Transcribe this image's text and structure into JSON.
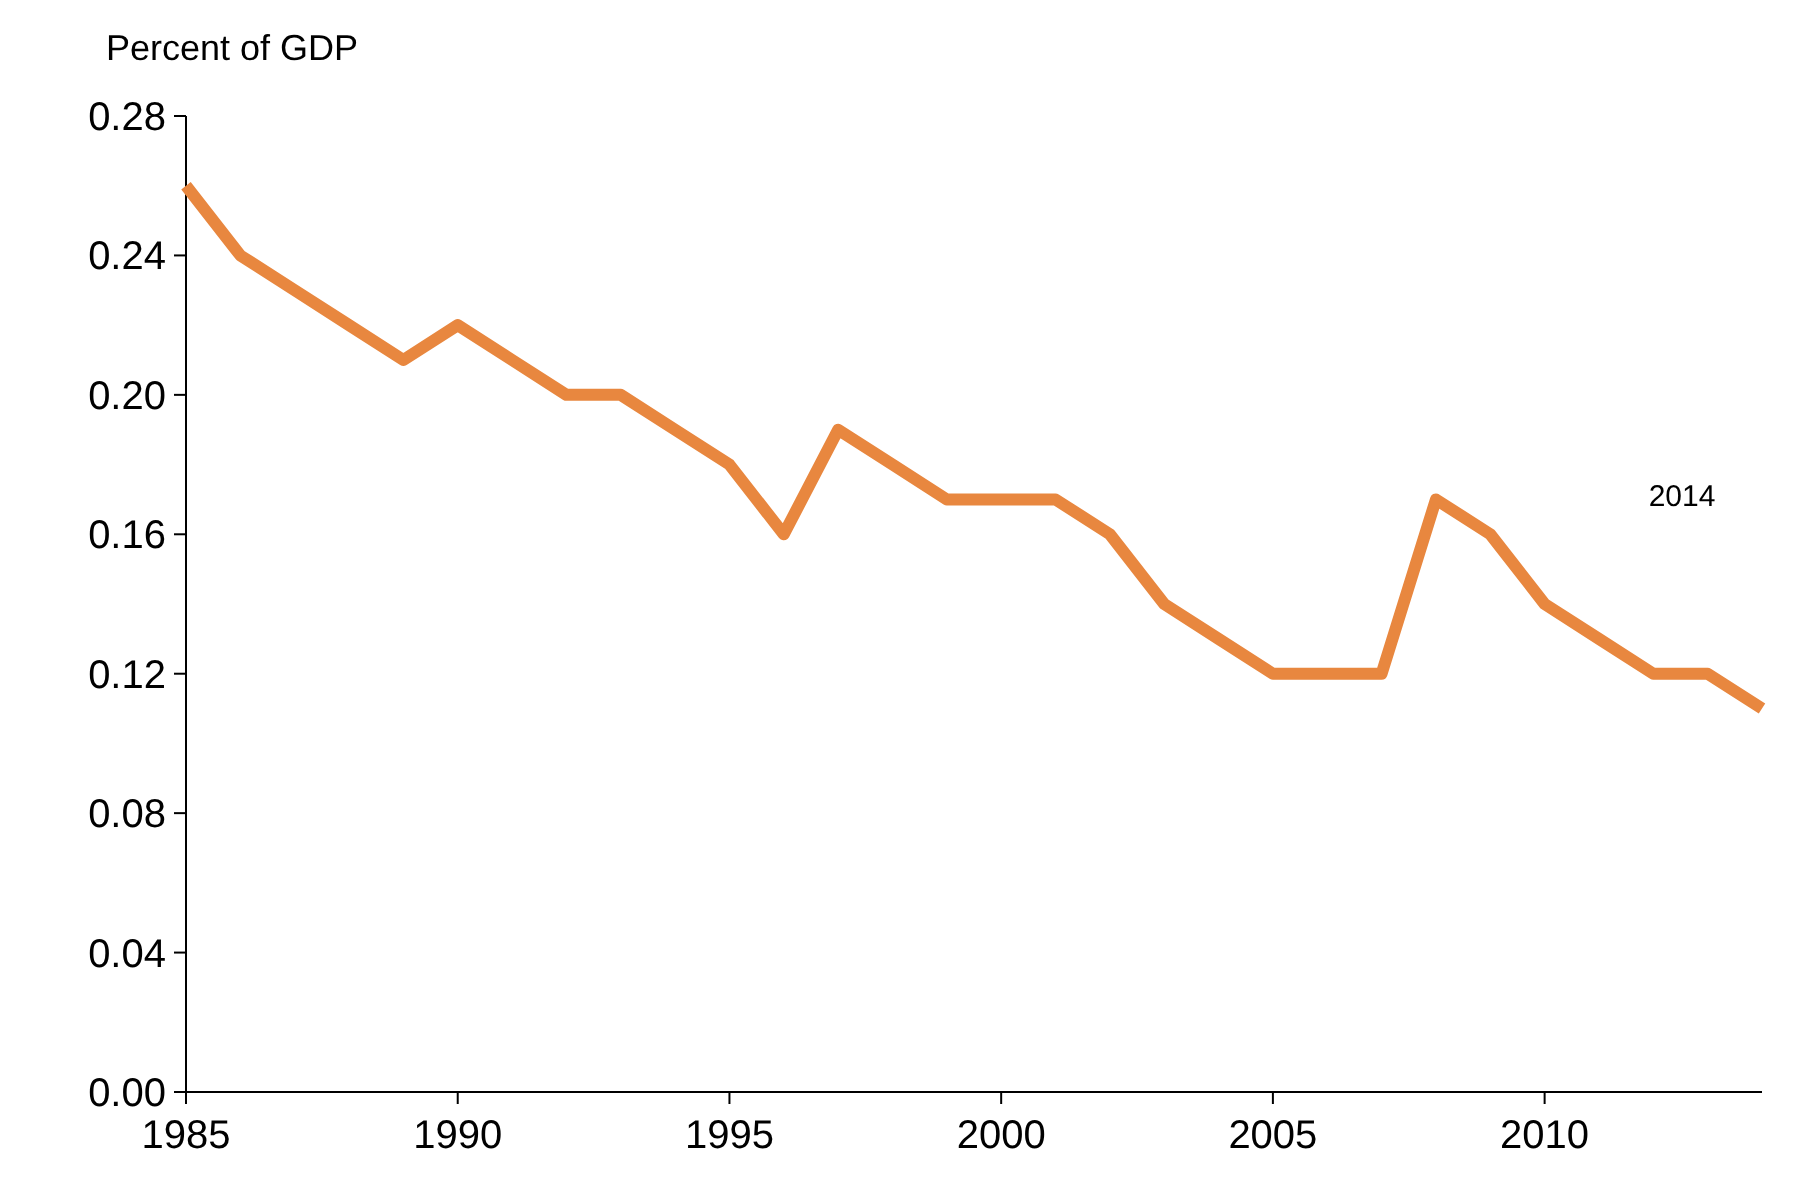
{
  "chart_data": {
    "type": "line",
    "ylabel": "Percent of GDP",
    "x": [
      1985,
      1986,
      1987,
      1988,
      1989,
      1990,
      1991,
      1992,
      1993,
      1994,
      1995,
      1996,
      1997,
      1998,
      1999,
      2000,
      2001,
      2002,
      2003,
      2004,
      2005,
      2006,
      2007,
      2008,
      2009,
      2010,
      2011,
      2012,
      2013,
      2014
    ],
    "series": [
      {
        "color": "#e8873f",
        "values": [
          0.26,
          0.24,
          0.23,
          0.22,
          0.21,
          0.22,
          0.21,
          0.2,
          0.2,
          0.19,
          0.18,
          0.16,
          0.19,
          0.18,
          0.17,
          0.17,
          0.17,
          0.16,
          0.14,
          0.13,
          0.12,
          0.12,
          0.12,
          0.17,
          0.16,
          0.14,
          0.13,
          0.12,
          0.12,
          0.11
        ]
      }
    ],
    "xlim": [
      1985,
      2014
    ],
    "xticks": [
      1985,
      1990,
      1995,
      2000,
      2005,
      2010
    ],
    "ylim": [
      0,
      0.28
    ],
    "yticks": [
      {
        "value": 0,
        "label": "0.00"
      },
      {
        "value": 0.04,
        "label": "0.04"
      },
      {
        "value": 0.08,
        "label": "0.08"
      },
      {
        "value": 0.12,
        "label": "0.12"
      },
      {
        "value": 0.16,
        "label": "0.16"
      },
      {
        "value": 0.2,
        "label": "0.20"
      },
      {
        "value": 0.24,
        "label": "0.24"
      },
      {
        "value": 0.28,
        "label": "0.28"
      }
    ],
    "annotations": [
      "2014"
    ],
    "grid": false,
    "line_style": "solid"
  }
}
